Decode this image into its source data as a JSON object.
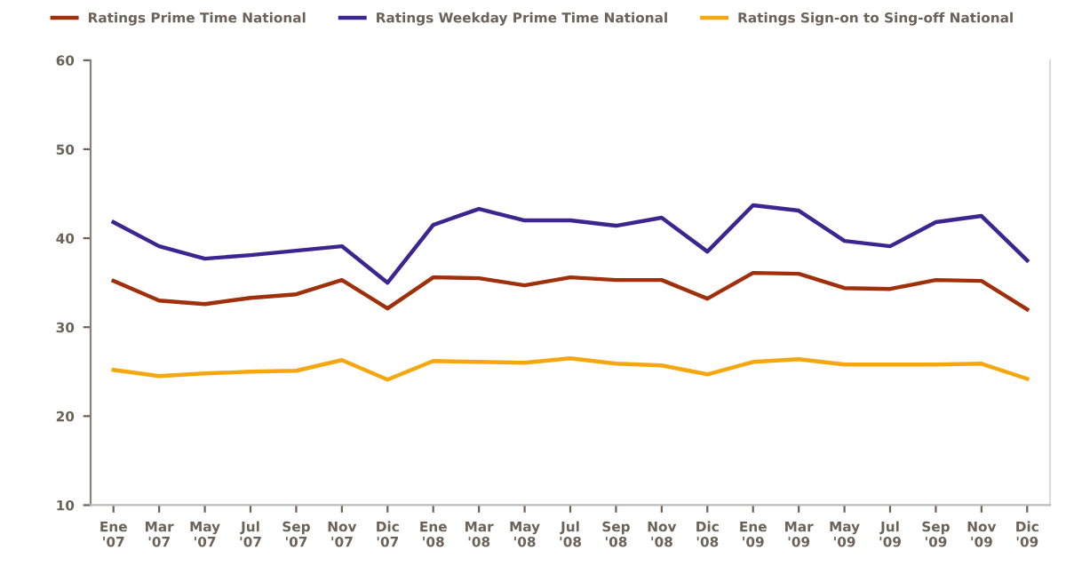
{
  "chart_data": {
    "type": "line",
    "categories": [
      "Ene\n'07",
      "Mar\n'07",
      "May\n'07",
      "Jul\n'07",
      "Sep\n'07",
      "Nov\n'07",
      "Dic\n'07",
      "Ene\n'08",
      "Mar\n'08",
      "May\n'08",
      "Jul\n'08",
      "Sep\n'08",
      "Nov\n'08",
      "Dic\n'08",
      "Ene\n'09",
      "Mar\n'09",
      "May\n'09",
      "Jul\n'09",
      "Sep\n'09",
      "Nov\n'09",
      "Dic\n'09"
    ],
    "series": [
      {
        "name": "Ratings Prime Time National",
        "color": "#a0300c",
        "values": [
          35.2,
          33.0,
          32.6,
          33.3,
          33.7,
          35.3,
          32.1,
          35.6,
          35.5,
          34.7,
          35.6,
          35.3,
          35.3,
          33.2,
          36.1,
          36.0,
          34.4,
          34.3,
          35.3,
          35.2,
          32.0
        ]
      },
      {
        "name": "Ratings Weekday Prime Time National",
        "color": "#3d2590",
        "values": [
          41.8,
          39.1,
          37.7,
          38.1,
          38.6,
          39.1,
          35.0,
          41.5,
          43.3,
          42.0,
          42.0,
          41.4,
          42.3,
          38.5,
          43.7,
          43.1,
          39.7,
          39.1,
          41.8,
          42.5,
          37.5
        ]
      },
      {
        "name": "Ratings Sign-on to Sing-off National",
        "color": "#f5a70f",
        "values": [
          25.2,
          24.5,
          24.8,
          25.0,
          25.1,
          26.3,
          24.1,
          26.2,
          26.1,
          26.0,
          26.5,
          25.9,
          25.7,
          24.7,
          26.1,
          26.4,
          25.8,
          25.8,
          25.8,
          25.9,
          24.2
        ]
      }
    ],
    "ylim": [
      10,
      60
    ],
    "yticks": [
      10,
      20,
      30,
      40,
      50,
      60
    ],
    "grid": false,
    "legend": "top",
    "marker": "none",
    "line_style": "solid"
  }
}
